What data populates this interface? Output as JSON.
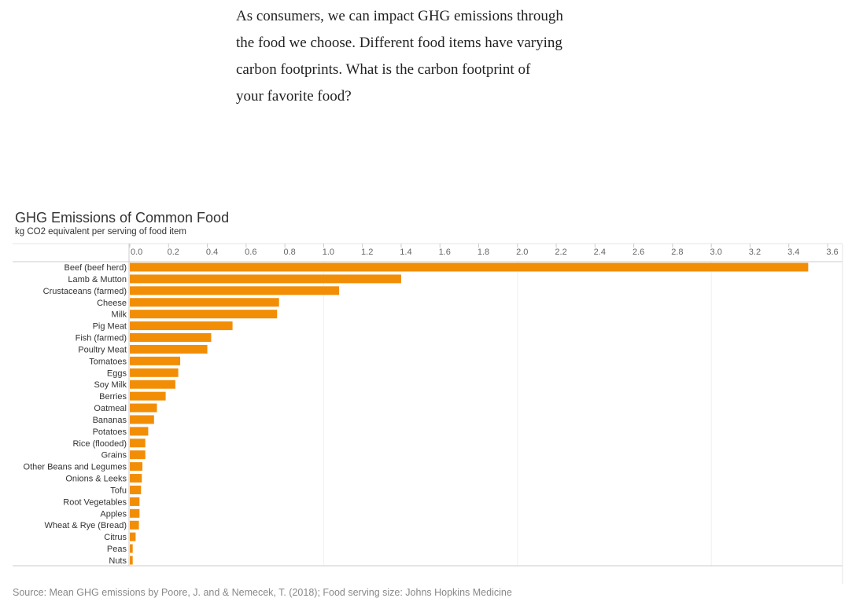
{
  "intro": {
    "lines": [
      "As consumers, we can impact GHG emissions through",
      "the food we choose.  Different food items have varying",
      "carbon footprints.  What is the carbon footprint of",
      "your favorite food?"
    ]
  },
  "source_note": "Source: Mean GHG emissions by Poore, J. and & Nemecek, T. (2018); Food serving size: Johns Hopkins Medicine",
  "colors": {
    "bar": "#f28e05",
    "grid": "#e6e6e6",
    "axis": "#cccccc"
  },
  "chart_data": {
    "type": "bar",
    "orientation": "horizontal",
    "title": "GHG Emissions of Common Food",
    "subtitle": "kg CO2 equivalent per serving of food item",
    "xlabel": "",
    "ylabel": "",
    "xlim": [
      0,
      3.6
    ],
    "x_ticks": [
      "0.0",
      "0.2",
      "0.4",
      "0.6",
      "0.8",
      "1.0",
      "1.2",
      "1.4",
      "1.6",
      "1.8",
      "2.0",
      "2.2",
      "2.4",
      "2.6",
      "2.8",
      "3.0",
      "3.2",
      "3.4",
      "3.6"
    ],
    "x_tick_values": [
      0,
      0.2,
      0.4,
      0.6,
      0.8,
      1.0,
      1.2,
      1.4,
      1.6,
      1.8,
      2.0,
      2.2,
      2.4,
      2.6,
      2.8,
      3.0,
      3.2,
      3.4,
      3.6
    ],
    "grid": true,
    "axis_position": "top",
    "categories": [
      "Beef (beef herd)",
      "Lamb & Mutton",
      "Crustaceans (farmed)",
      "Cheese",
      "Milk",
      "Pig Meat",
      "Fish (farmed)",
      "Poultry Meat",
      "Tomatoes",
      "Eggs",
      "Soy Milk",
      "Berries",
      "Oatmeal",
      "Bananas",
      "Potatoes",
      "Rice (flooded)",
      "Grains",
      "Other Beans and Legumes",
      "Onions & Leeks",
      "Tofu",
      "Root Vegetables",
      "Apples",
      "Wheat & Rye (Bread)",
      "Citrus",
      "Peas",
      "Nuts"
    ],
    "values": [
      3.5,
      1.4,
      1.08,
      0.77,
      0.76,
      0.53,
      0.42,
      0.4,
      0.26,
      0.25,
      0.235,
      0.185,
      0.14,
      0.125,
      0.095,
      0.08,
      0.08,
      0.065,
      0.062,
      0.058,
      0.05,
      0.05,
      0.047,
      0.03,
      0.015,
      0.015
    ]
  }
}
